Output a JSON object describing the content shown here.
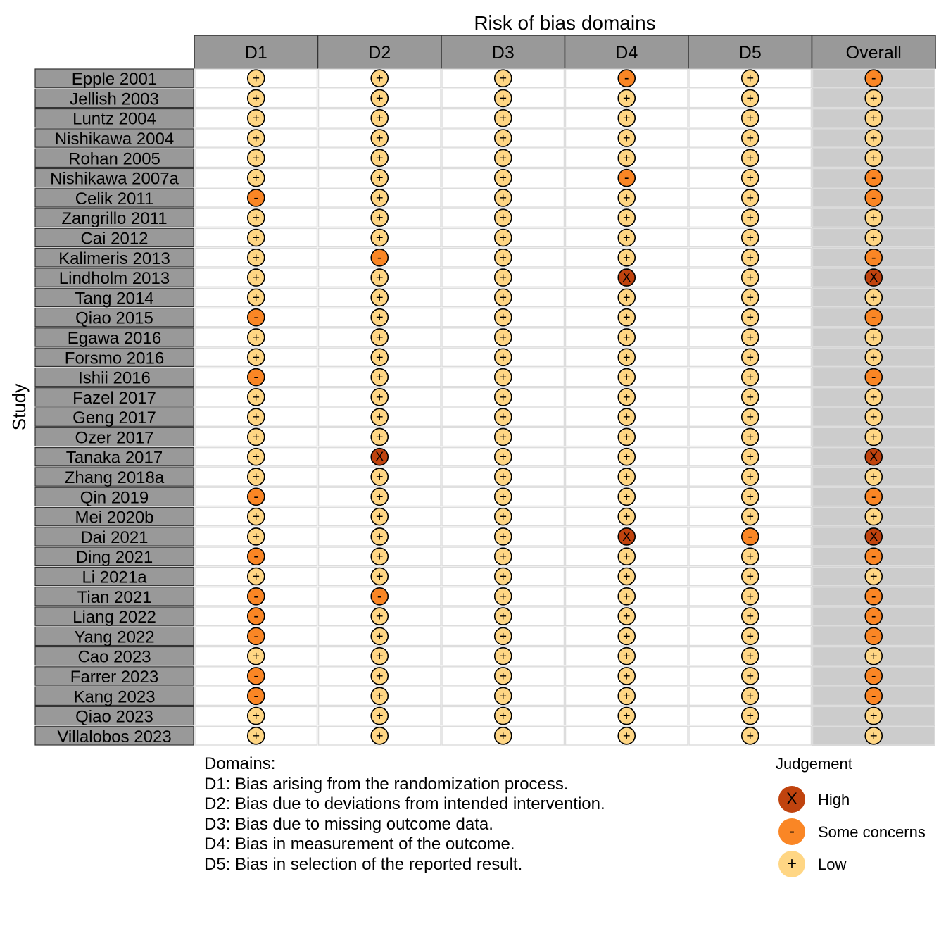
{
  "chart_data": {
    "type": "table",
    "title": "Risk of bias domains",
    "ylabel": "Study",
    "columns": [
      "D1",
      "D2",
      "D3",
      "D4",
      "D5",
      "Overall"
    ],
    "symbols": {
      "High": "X",
      "Some concerns": "-",
      "Low": "+"
    },
    "colors": {
      "High": "#C0430E",
      "Some concerns": "#FA8625",
      "Low": "#FFD684",
      "header": "#999999",
      "overall_bg": "#CCCCCC"
    },
    "rows": [
      {
        "study": "Epple 2001",
        "judgements": [
          "Low",
          "Low",
          "Low",
          "Some concerns",
          "Low",
          "Some concerns"
        ]
      },
      {
        "study": "Jellish 2003",
        "judgements": [
          "Low",
          "Low",
          "Low",
          "Low",
          "Low",
          "Low"
        ]
      },
      {
        "study": "Luntz 2004",
        "judgements": [
          "Low",
          "Low",
          "Low",
          "Low",
          "Low",
          "Low"
        ]
      },
      {
        "study": "Nishikawa 2004",
        "judgements": [
          "Low",
          "Low",
          "Low",
          "Low",
          "Low",
          "Low"
        ]
      },
      {
        "study": "Rohan 2005",
        "judgements": [
          "Low",
          "Low",
          "Low",
          "Low",
          "Low",
          "Low"
        ]
      },
      {
        "study": "Nishikawa 2007a",
        "judgements": [
          "Low",
          "Low",
          "Low",
          "Some concerns",
          "Low",
          "Some concerns"
        ]
      },
      {
        "study": "Celik 2011",
        "judgements": [
          "Some concerns",
          "Low",
          "Low",
          "Low",
          "Low",
          "Some concerns"
        ]
      },
      {
        "study": "Zangrillo 2011",
        "judgements": [
          "Low",
          "Low",
          "Low",
          "Low",
          "Low",
          "Low"
        ]
      },
      {
        "study": "Cai 2012",
        "judgements": [
          "Low",
          "Low",
          "Low",
          "Low",
          "Low",
          "Low"
        ]
      },
      {
        "study": "Kalimeris 2013",
        "judgements": [
          "Low",
          "Some concerns",
          "Low",
          "Low",
          "Low",
          "Some concerns"
        ]
      },
      {
        "study": "Lindholm 2013",
        "judgements": [
          "Low",
          "Low",
          "Low",
          "High",
          "Low",
          "High"
        ]
      },
      {
        "study": "Tang 2014",
        "judgements": [
          "Low",
          "Low",
          "Low",
          "Low",
          "Low",
          "Low"
        ]
      },
      {
        "study": "Qiao 2015",
        "judgements": [
          "Some concerns",
          "Low",
          "Low",
          "Low",
          "Low",
          "Some concerns"
        ]
      },
      {
        "study": "Egawa 2016",
        "judgements": [
          "Low",
          "Low",
          "Low",
          "Low",
          "Low",
          "Low"
        ]
      },
      {
        "study": "Forsmo 2016",
        "judgements": [
          "Low",
          "Low",
          "Low",
          "Low",
          "Low",
          "Low"
        ]
      },
      {
        "study": "Ishii 2016",
        "judgements": [
          "Some concerns",
          "Low",
          "Low",
          "Low",
          "Low",
          "Some concerns"
        ]
      },
      {
        "study": "Fazel 2017",
        "judgements": [
          "Low",
          "Low",
          "Low",
          "Low",
          "Low",
          "Low"
        ]
      },
      {
        "study": "Geng 2017",
        "judgements": [
          "Low",
          "Low",
          "Low",
          "Low",
          "Low",
          "Low"
        ]
      },
      {
        "study": "Ozer 2017",
        "judgements": [
          "Low",
          "Low",
          "Low",
          "Low",
          "Low",
          "Low"
        ]
      },
      {
        "study": "Tanaka 2017",
        "judgements": [
          "Low",
          "High",
          "Low",
          "Low",
          "Low",
          "High"
        ]
      },
      {
        "study": "Zhang 2018a",
        "judgements": [
          "Low",
          "Low",
          "Low",
          "Low",
          "Low",
          "Low"
        ]
      },
      {
        "study": "Qin 2019",
        "judgements": [
          "Some concerns",
          "Low",
          "Low",
          "Low",
          "Low",
          "Some concerns"
        ]
      },
      {
        "study": "Mei 2020b",
        "judgements": [
          "Low",
          "Low",
          "Low",
          "Low",
          "Low",
          "Low"
        ]
      },
      {
        "study": "Dai 2021",
        "judgements": [
          "Low",
          "Low",
          "Low",
          "High",
          "Some concerns",
          "High"
        ]
      },
      {
        "study": "Ding 2021",
        "judgements": [
          "Some concerns",
          "Low",
          "Low",
          "Low",
          "Low",
          "Some concerns"
        ]
      },
      {
        "study": "Li 2021a",
        "judgements": [
          "Low",
          "Low",
          "Low",
          "Low",
          "Low",
          "Low"
        ]
      },
      {
        "study": "Tian 2021",
        "judgements": [
          "Some concerns",
          "Some concerns",
          "Low",
          "Low",
          "Low",
          "Some concerns"
        ]
      },
      {
        "study": "Liang 2022",
        "judgements": [
          "Some concerns",
          "Low",
          "Low",
          "Low",
          "Low",
          "Some concerns"
        ]
      },
      {
        "study": "Yang 2022",
        "judgements": [
          "Some concerns",
          "Low",
          "Low",
          "Low",
          "Low",
          "Some concerns"
        ]
      },
      {
        "study": "Cao 2023",
        "judgements": [
          "Low",
          "Low",
          "Low",
          "Low",
          "Low",
          "Low"
        ]
      },
      {
        "study": "Farrer 2023",
        "judgements": [
          "Some concerns",
          "Low",
          "Low",
          "Low",
          "Low",
          "Some concerns"
        ]
      },
      {
        "study": "Kang 2023",
        "judgements": [
          "Some concerns",
          "Low",
          "Low",
          "Low",
          "Low",
          "Some concerns"
        ]
      },
      {
        "study": "Qiao 2023",
        "judgements": [
          "Low",
          "Low",
          "Low",
          "Low",
          "Low",
          "Low"
        ]
      },
      {
        "study": "Villalobos 2023",
        "judgements": [
          "Low",
          "Low",
          "Low",
          "Low",
          "Low",
          "Low"
        ]
      }
    ],
    "legend": {
      "title": "Judgement",
      "placement": "bottom-right",
      "items": [
        {
          "label": "High",
          "symbol": "X"
        },
        {
          "label": "Some concerns",
          "symbol": "-"
        },
        {
          "label": "Low",
          "symbol": "+"
        }
      ]
    }
  },
  "domains_legend": {
    "heading": "Domains:",
    "lines": [
      "D1: Bias arising from the randomization process.",
      "D2: Bias due to deviations from intended intervention.",
      "D3: Bias due to missing outcome data.",
      "D4: Bias in measurement of the outcome.",
      "D5: Bias in selection of the reported result."
    ]
  }
}
